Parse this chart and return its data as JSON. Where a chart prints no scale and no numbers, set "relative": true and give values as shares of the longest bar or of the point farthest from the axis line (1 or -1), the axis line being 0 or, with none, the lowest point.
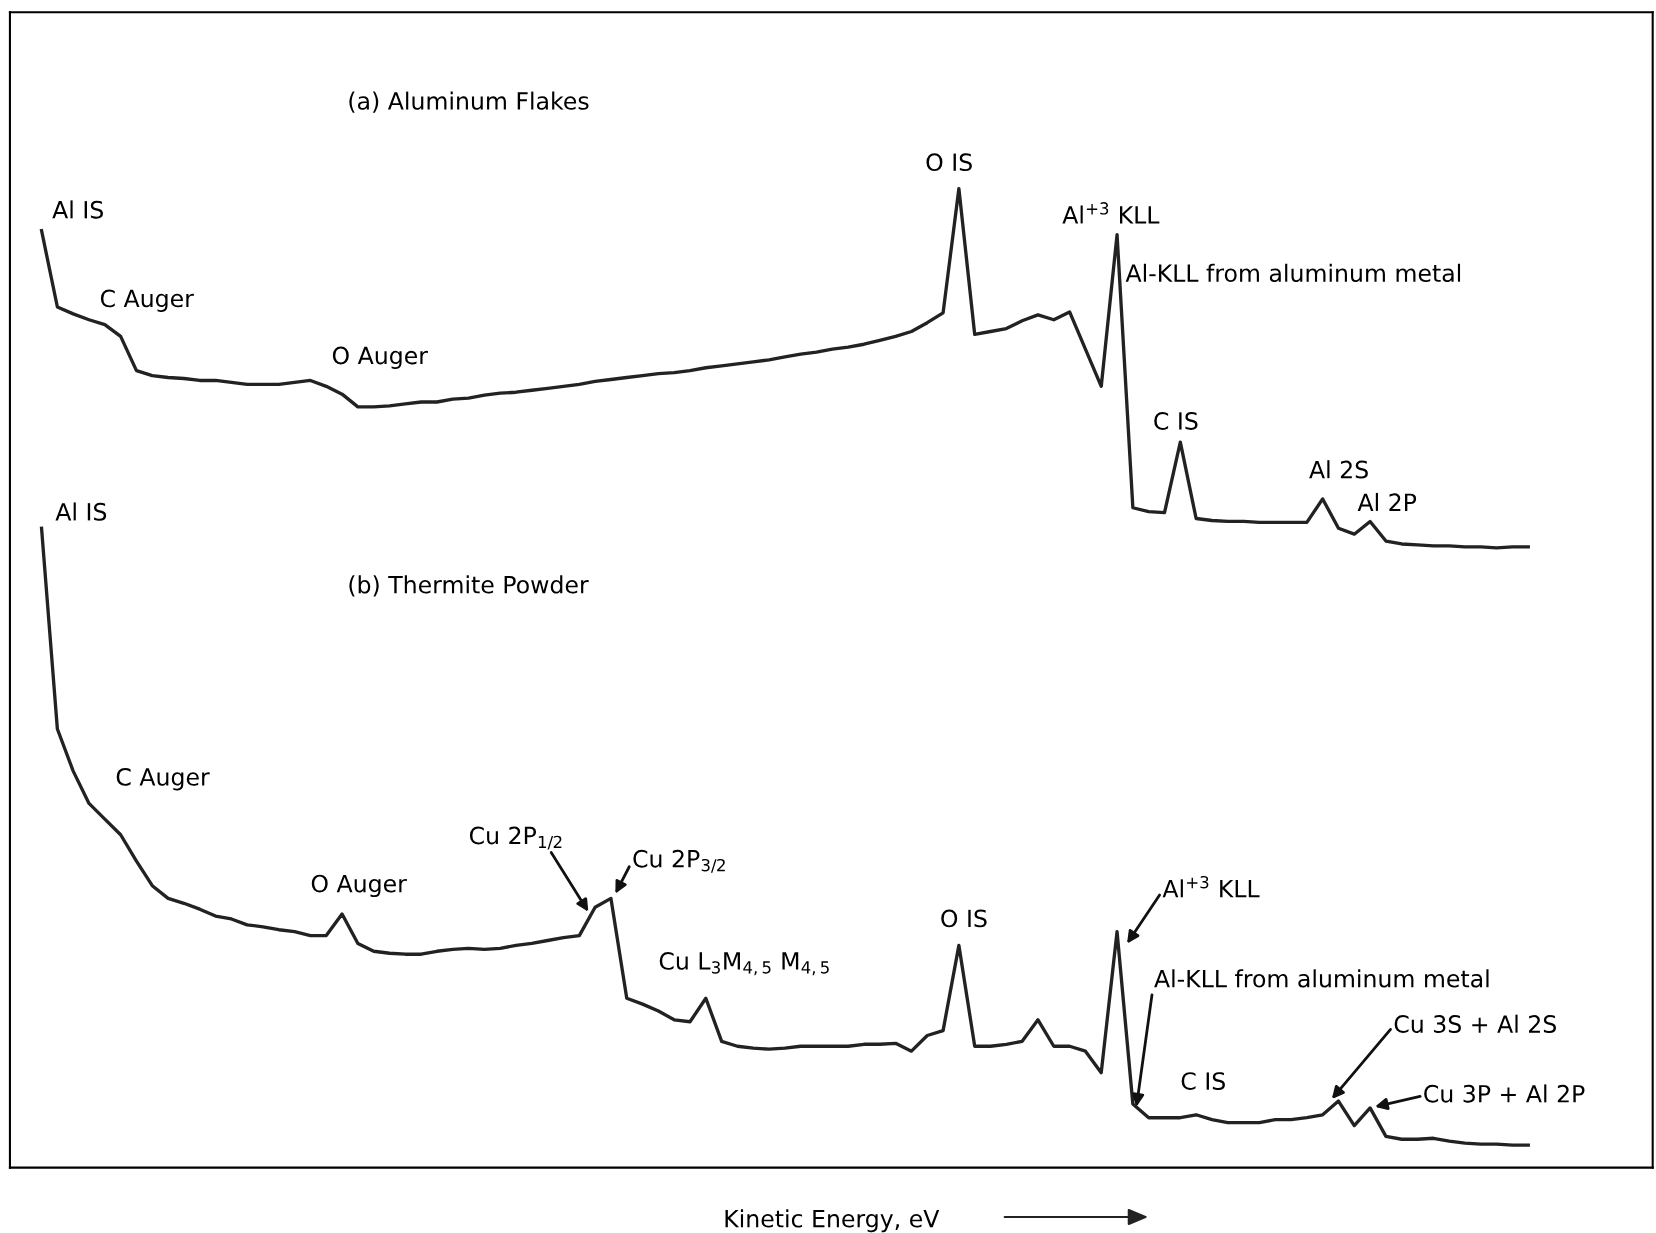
{
  "chart_data": {
    "type": "line",
    "relative": true,
    "legend": false,
    "marker": "none",
    "line_style": "solid",
    "xlabel": "Kinetic Energy, eV",
    "categories": [
      null,
      null,
      null,
      null,
      null,
      null,
      null,
      null,
      null,
      null,
      null,
      null,
      null,
      null,
      null,
      null,
      null,
      null,
      null,
      null,
      null,
      null,
      null,
      null,
      null,
      null,
      null,
      null,
      null,
      null,
      null,
      null,
      null,
      null,
      null,
      null,
      null,
      null,
      null,
      null,
      null,
      null,
      null,
      null,
      null,
      null,
      null,
      null,
      null,
      null,
      null,
      null,
      null,
      null,
      null,
      null,
      null,
      null,
      null,
      null,
      null,
      null,
      null,
      null,
      null,
      null,
      null,
      null,
      null,
      null,
      null,
      null,
      null,
      null,
      null,
      null,
      null,
      null,
      null,
      null,
      null,
      null,
      null,
      null,
      null,
      null,
      null,
      null,
      null,
      null,
      null,
      null,
      null,
      null,
      null
    ],
    "series": [
      {
        "color": "#222222",
        "values": [
          0.957,
          0.879,
          0.872,
          0.866,
          0.861,
          0.849,
          0.814,
          0.809,
          0.807,
          0.806,
          0.804,
          0.804,
          0.802,
          0.8,
          0.8,
          0.8,
          0.802,
          0.804,
          0.798,
          0.79,
          0.777,
          0.777,
          0.778,
          0.78,
          0.782,
          0.782,
          0.785,
          0.786,
          0.789,
          0.791,
          0.792,
          0.794,
          0.796,
          0.798,
          0.8,
          0.803,
          0.805,
          0.807,
          0.809,
          0.811,
          0.812,
          0.814,
          0.817,
          0.819,
          0.821,
          0.823,
          0.825,
          0.828,
          0.831,
          0.833,
          0.836,
          0.838,
          0.841,
          0.845,
          0.849,
          0.854,
          0.863,
          0.873,
          1.0,
          0.851,
          0.854,
          0.857,
          0.865,
          0.871,
          0.866,
          0.874,
          0.836,
          0.798,
          0.953,
          0.674,
          0.67,
          0.669,
          0.741,
          0.663,
          0.661,
          0.66,
          0.66,
          0.659,
          0.659,
          0.659,
          0.659,
          0.683,
          0.653,
          0.647,
          0.66,
          0.64,
          0.637,
          0.636,
          0.635,
          0.635,
          0.634,
          0.634,
          0.633,
          0.634,
          0.634
        ]
      },
      {
        "color": "#222222",
        "values": [
          0.653,
          0.448,
          0.405,
          0.372,
          0.356,
          0.34,
          0.313,
          0.288,
          0.275,
          0.27,
          0.264,
          0.257,
          0.254,
          0.248,
          0.246,
          0.243,
          0.241,
          0.237,
          0.237,
          0.259,
          0.229,
          0.221,
          0.219,
          0.218,
          0.218,
          0.221,
          0.223,
          0.224,
          0.223,
          0.224,
          0.227,
          0.229,
          0.232,
          0.235,
          0.237,
          0.266,
          0.275,
          0.173,
          0.167,
          0.16,
          0.151,
          0.149,
          0.173,
          0.129,
          0.124,
          0.122,
          0.121,
          0.122,
          0.124,
          0.124,
          0.124,
          0.124,
          0.126,
          0.126,
          0.127,
          0.119,
          0.135,
          0.14,
          0.227,
          0.124,
          0.124,
          0.126,
          0.129,
          0.151,
          0.124,
          0.124,
          0.119,
          0.097,
          0.241,
          0.065,
          0.051,
          0.051,
          0.051,
          0.054,
          0.049,
          0.046,
          0.046,
          0.046,
          0.049,
          0.049,
          0.051,
          0.054,
          0.068,
          0.043,
          0.061,
          0.032,
          0.029,
          0.029,
          0.03,
          0.027,
          0.025,
          0.024,
          0.024,
          0.023,
          0.023
        ]
      }
    ],
    "annotations": [
      "(a) Aluminum Flakes",
      "(b) Thermite Powder",
      "Al IS",
      "C Auger",
      "O Auger",
      "O IS",
      "Al$^{+3}$ KLL",
      "Al-KLL from aluminum metal",
      "C IS",
      "Al 2S",
      "Al 2P",
      "Al IS",
      "C Auger",
      "O Auger",
      "Cu 2P$_{1/2}$",
      "Cu 2P$_{3/2}$",
      "Cu L$_{3}$M$_{4,5}$ M$_{4,5}$",
      "O IS",
      "Al$^{+3}$ KLL",
      "Al-KLL from aluminum metal",
      "C IS",
      "Cu 3S + Al 2S",
      "Cu 3P + Al 2P"
    ]
  }
}
